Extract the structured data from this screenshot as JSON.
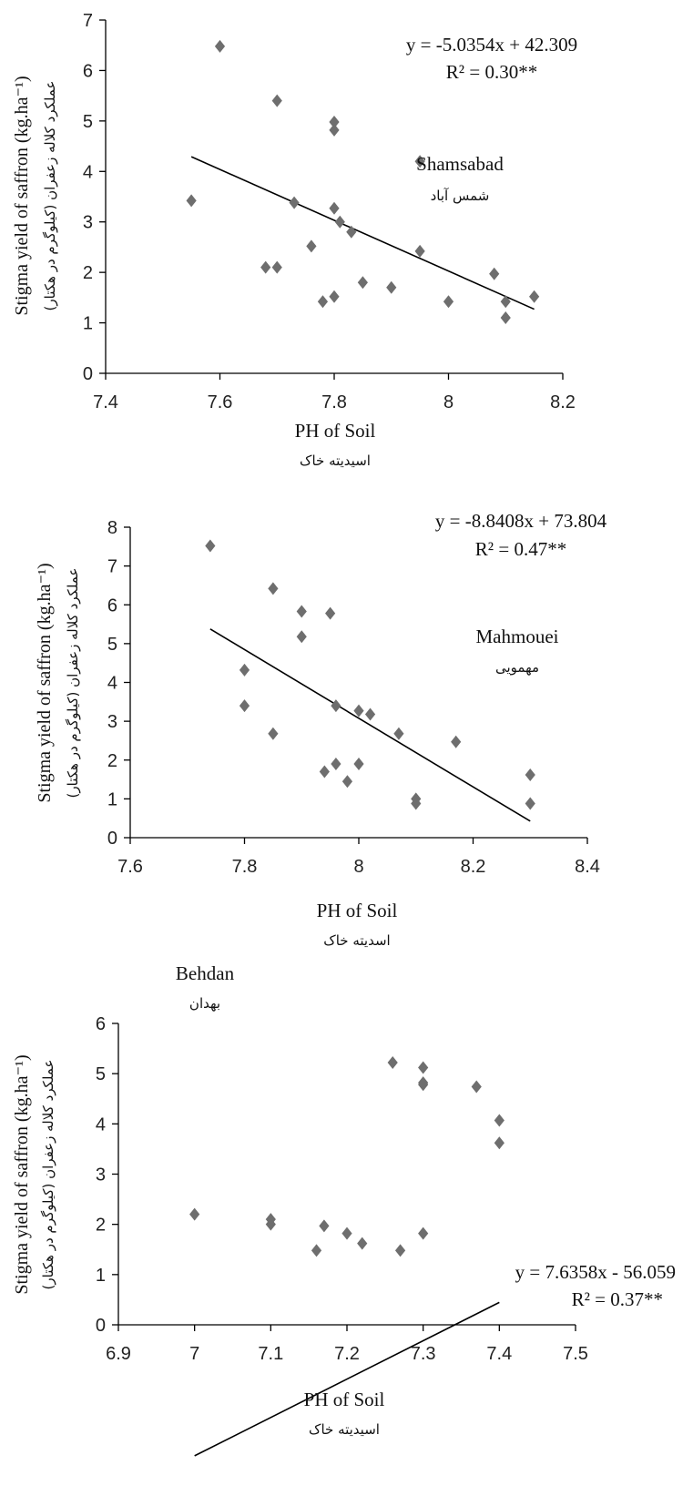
{
  "chart_data": [
    {
      "type": "scatter",
      "site_name": "Shamsabad",
      "site_name_fa": "شمس آباد",
      "equation": "y = -5.0354x  + 42.309",
      "r2_label": "R² = 0.30**",
      "ylabel": "Stigma yield of saffron (kg.ha⁻¹)",
      "ylabel_fa": "عملکرد کلاله زعفران (کیلوگرم در هکتار)",
      "xlabel": "PH of Soil",
      "xlabel_fa": "اسیدیته خاک",
      "xlim": [
        7.4,
        8.2
      ],
      "ylim": [
        0,
        7
      ],
      "xticks": [
        "7.4",
        "7.6",
        "7.8",
        "8",
        "8.2"
      ],
      "yticks": [
        "0",
        "1",
        "2",
        "3",
        "4",
        "5",
        "6",
        "7"
      ],
      "trend": {
        "slope": -5.0354,
        "intercept": 42.309,
        "x_range": [
          7.55,
          8.15
        ]
      },
      "points": [
        {
          "x": 7.6,
          "y": 6.48
        },
        {
          "x": 7.7,
          "y": 5.4
        },
        {
          "x": 7.8,
          "y": 4.98
        },
        {
          "x": 7.8,
          "y": 4.82
        },
        {
          "x": 7.95,
          "y": 4.2
        },
        {
          "x": 7.55,
          "y": 3.42
        },
        {
          "x": 7.73,
          "y": 3.38
        },
        {
          "x": 7.8,
          "y": 3.27
        },
        {
          "x": 7.81,
          "y": 3.0
        },
        {
          "x": 7.83,
          "y": 2.8
        },
        {
          "x": 7.76,
          "y": 2.52
        },
        {
          "x": 7.95,
          "y": 2.42
        },
        {
          "x": 7.68,
          "y": 2.1
        },
        {
          "x": 7.7,
          "y": 2.1
        },
        {
          "x": 8.08,
          "y": 1.97
        },
        {
          "x": 7.85,
          "y": 1.8
        },
        {
          "x": 7.9,
          "y": 1.7
        },
        {
          "x": 7.8,
          "y": 1.52
        },
        {
          "x": 8.15,
          "y": 1.52
        },
        {
          "x": 7.78,
          "y": 1.42
        },
        {
          "x": 8.0,
          "y": 1.42
        },
        {
          "x": 8.1,
          "y": 1.42
        },
        {
          "x": 8.1,
          "y": 1.1
        }
      ]
    },
    {
      "type": "scatter",
      "site_name": "Mahmouei",
      "site_name_fa": "مهمویی",
      "equation": "y = -8.8408x  + 73.804",
      "r2_label": "R² = 0.47**",
      "ylabel": "Stigma yield of saffron (kg.ha⁻¹)",
      "ylabel_fa": "عملکرد کلاله زعفران (کیلوگرم در هکتار)",
      "xlabel": "PH of Soil",
      "xlabel_fa": "اسدیته خاک",
      "xlim": [
        7.6,
        8.4
      ],
      "ylim": [
        0,
        8
      ],
      "xticks": [
        "7.6",
        "7.8",
        "8",
        "8.2",
        "8.4"
      ],
      "yticks": [
        "0",
        "1",
        "2",
        "3",
        "4",
        "5",
        "6",
        "7",
        "8"
      ],
      "trend": {
        "slope": -8.8408,
        "intercept": 73.804,
        "x_range": [
          7.74,
          8.3
        ]
      },
      "points": [
        {
          "x": 7.74,
          "y": 7.52
        },
        {
          "x": 7.85,
          "y": 6.42
        },
        {
          "x": 7.9,
          "y": 5.83
        },
        {
          "x": 7.95,
          "y": 5.78
        },
        {
          "x": 7.9,
          "y": 5.18
        },
        {
          "x": 7.8,
          "y": 4.32
        },
        {
          "x": 7.8,
          "y": 3.4
        },
        {
          "x": 7.96,
          "y": 3.4
        },
        {
          "x": 8.0,
          "y": 3.27
        },
        {
          "x": 8.02,
          "y": 3.18
        },
        {
          "x": 7.85,
          "y": 2.68
        },
        {
          "x": 8.07,
          "y": 2.68
        },
        {
          "x": 8.17,
          "y": 2.47
        },
        {
          "x": 7.96,
          "y": 1.9
        },
        {
          "x": 8.0,
          "y": 1.9
        },
        {
          "x": 7.94,
          "y": 1.7
        },
        {
          "x": 8.3,
          "y": 1.62
        },
        {
          "x": 7.98,
          "y": 1.45
        },
        {
          "x": 8.1,
          "y": 1.0
        },
        {
          "x": 8.1,
          "y": 0.88
        },
        {
          "x": 8.3,
          "y": 0.88
        }
      ]
    },
    {
      "type": "scatter",
      "site_name": "Behdan",
      "site_name_fa": "بهدان",
      "equation": "y = 7.6358x  - 56.059",
      "r2_label": "R² = 0.37**",
      "ylabel": "Stigma yield of saffron (kg.ha⁻¹)",
      "ylabel_fa": "عملکرد کلاله زعفران (کیلوگرم در هکتار)",
      "xlabel": "PH of Soil",
      "xlabel_fa": "اسیدیته خاک",
      "xlim": [
        6.9,
        7.5
      ],
      "ylim": [
        0,
        6
      ],
      "xticks": [
        "6.9",
        "7",
        "7.1",
        "7.2",
        "7.3",
        "7.4",
        "7.5"
      ],
      "yticks": [
        "0",
        "1",
        "2",
        "3",
        "4",
        "5",
        "6"
      ],
      "trend": {
        "slope": 7.6358,
        "intercept": -56.059,
        "x_range": [
          7.0,
          7.4
        ]
      },
      "points": [
        {
          "x": 7.26,
          "y": 5.22
        },
        {
          "x": 7.3,
          "y": 5.12
        },
        {
          "x": 7.3,
          "y": 4.82
        },
        {
          "x": 7.3,
          "y": 4.78
        },
        {
          "x": 7.37,
          "y": 4.74
        },
        {
          "x": 7.4,
          "y": 4.07
        },
        {
          "x": 7.4,
          "y": 3.62
        },
        {
          "x": 7.0,
          "y": 2.2
        },
        {
          "x": 7.1,
          "y": 2.1
        },
        {
          "x": 7.1,
          "y": 2.0
        },
        {
          "x": 7.17,
          "y": 1.97
        },
        {
          "x": 7.2,
          "y": 1.82
        },
        {
          "x": 7.3,
          "y": 1.82
        },
        {
          "x": 7.22,
          "y": 1.62
        },
        {
          "x": 7.16,
          "y": 1.48
        },
        {
          "x": 7.27,
          "y": 1.48
        }
      ]
    }
  ]
}
